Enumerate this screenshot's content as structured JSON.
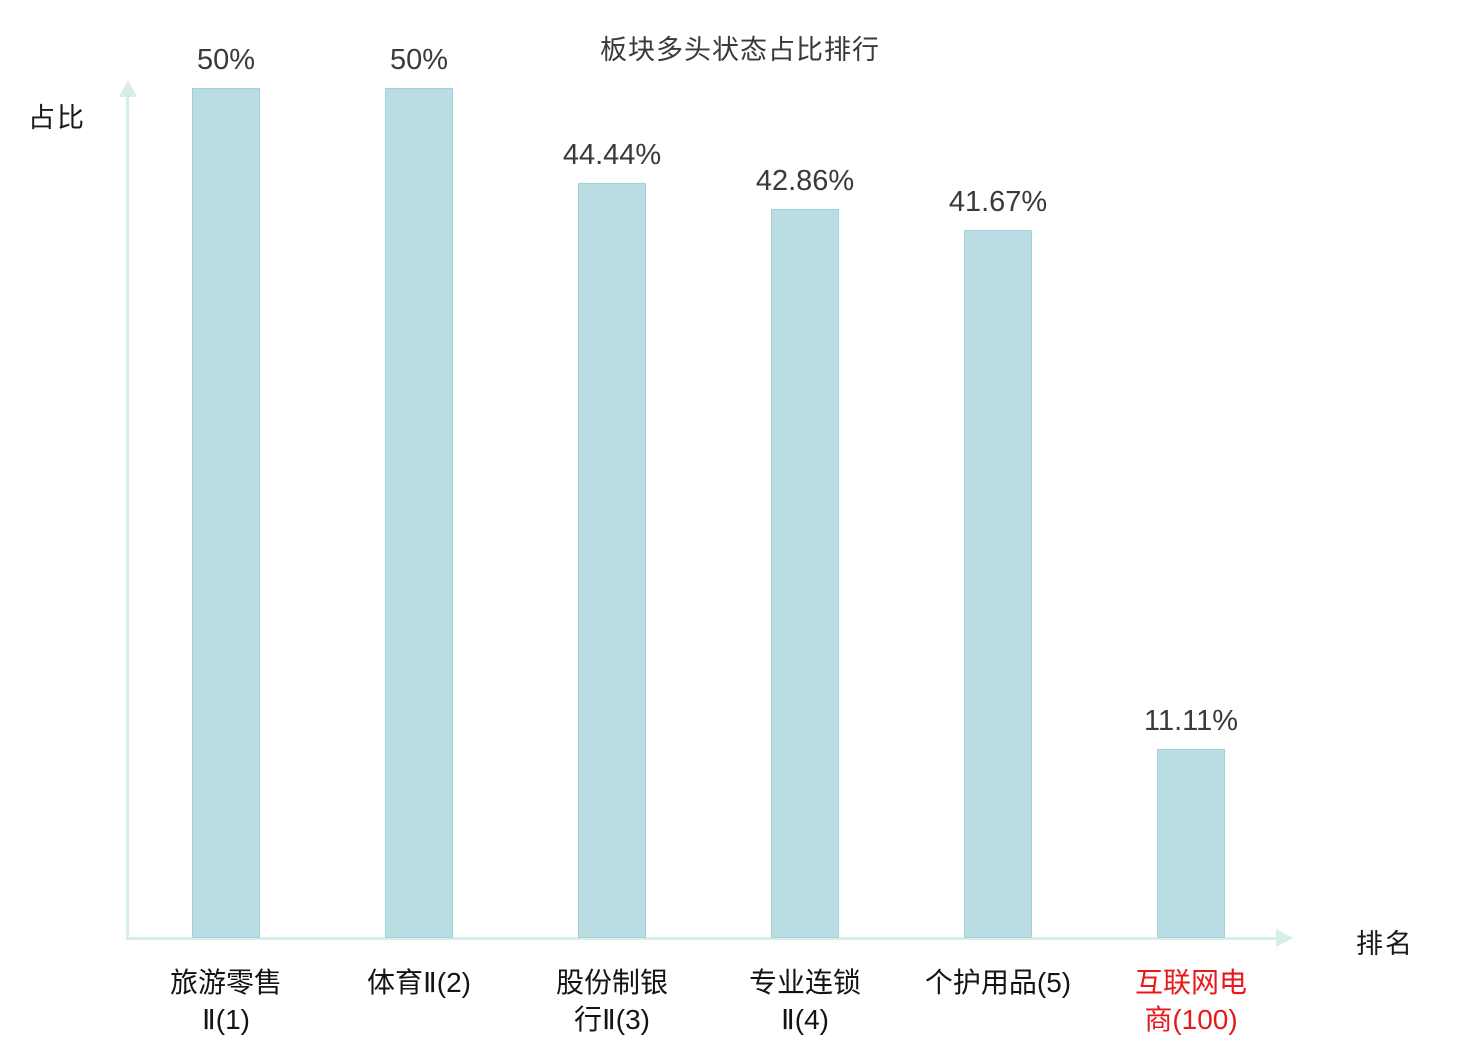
{
  "chart_data": {
    "type": "bar",
    "title": "板块多头状态占比排行",
    "xlabel": "排名",
    "ylabel": "占比",
    "ylim": [
      0,
      52
    ],
    "grid": false,
    "legend": "none",
    "categories": [
      "旅游零售Ⅱ(1)",
      "体育Ⅱ(2)",
      "股份制银行Ⅱ(3)",
      "专业连锁Ⅱ(4)",
      "个护用品(5)",
      "互联网电商(100)"
    ],
    "category_label_lines": [
      [
        "旅游零售",
        "Ⅱ(1)"
      ],
      [
        "体育Ⅱ(2)"
      ],
      [
        "股份制银",
        "行Ⅱ(3)"
      ],
      [
        "专业连锁",
        "Ⅱ(4)"
      ],
      [
        "个护用品(5)"
      ],
      [
        "互联网电",
        "商(100)"
      ]
    ],
    "values": [
      50,
      50,
      44.44,
      42.86,
      41.67,
      11.11
    ],
    "value_labels": [
      "50%",
      "50%",
      "44.44%",
      "42.86%",
      "41.67%",
      "11.11%"
    ],
    "highlight_index": 5,
    "colors": {
      "bar_fill": "#b9dde2",
      "bar_border": "#a3d1d8",
      "axis": "#d6eee7",
      "value_text": "#3a3a3a",
      "category_text": "#141414",
      "highlight_text": "#e8191a"
    }
  }
}
